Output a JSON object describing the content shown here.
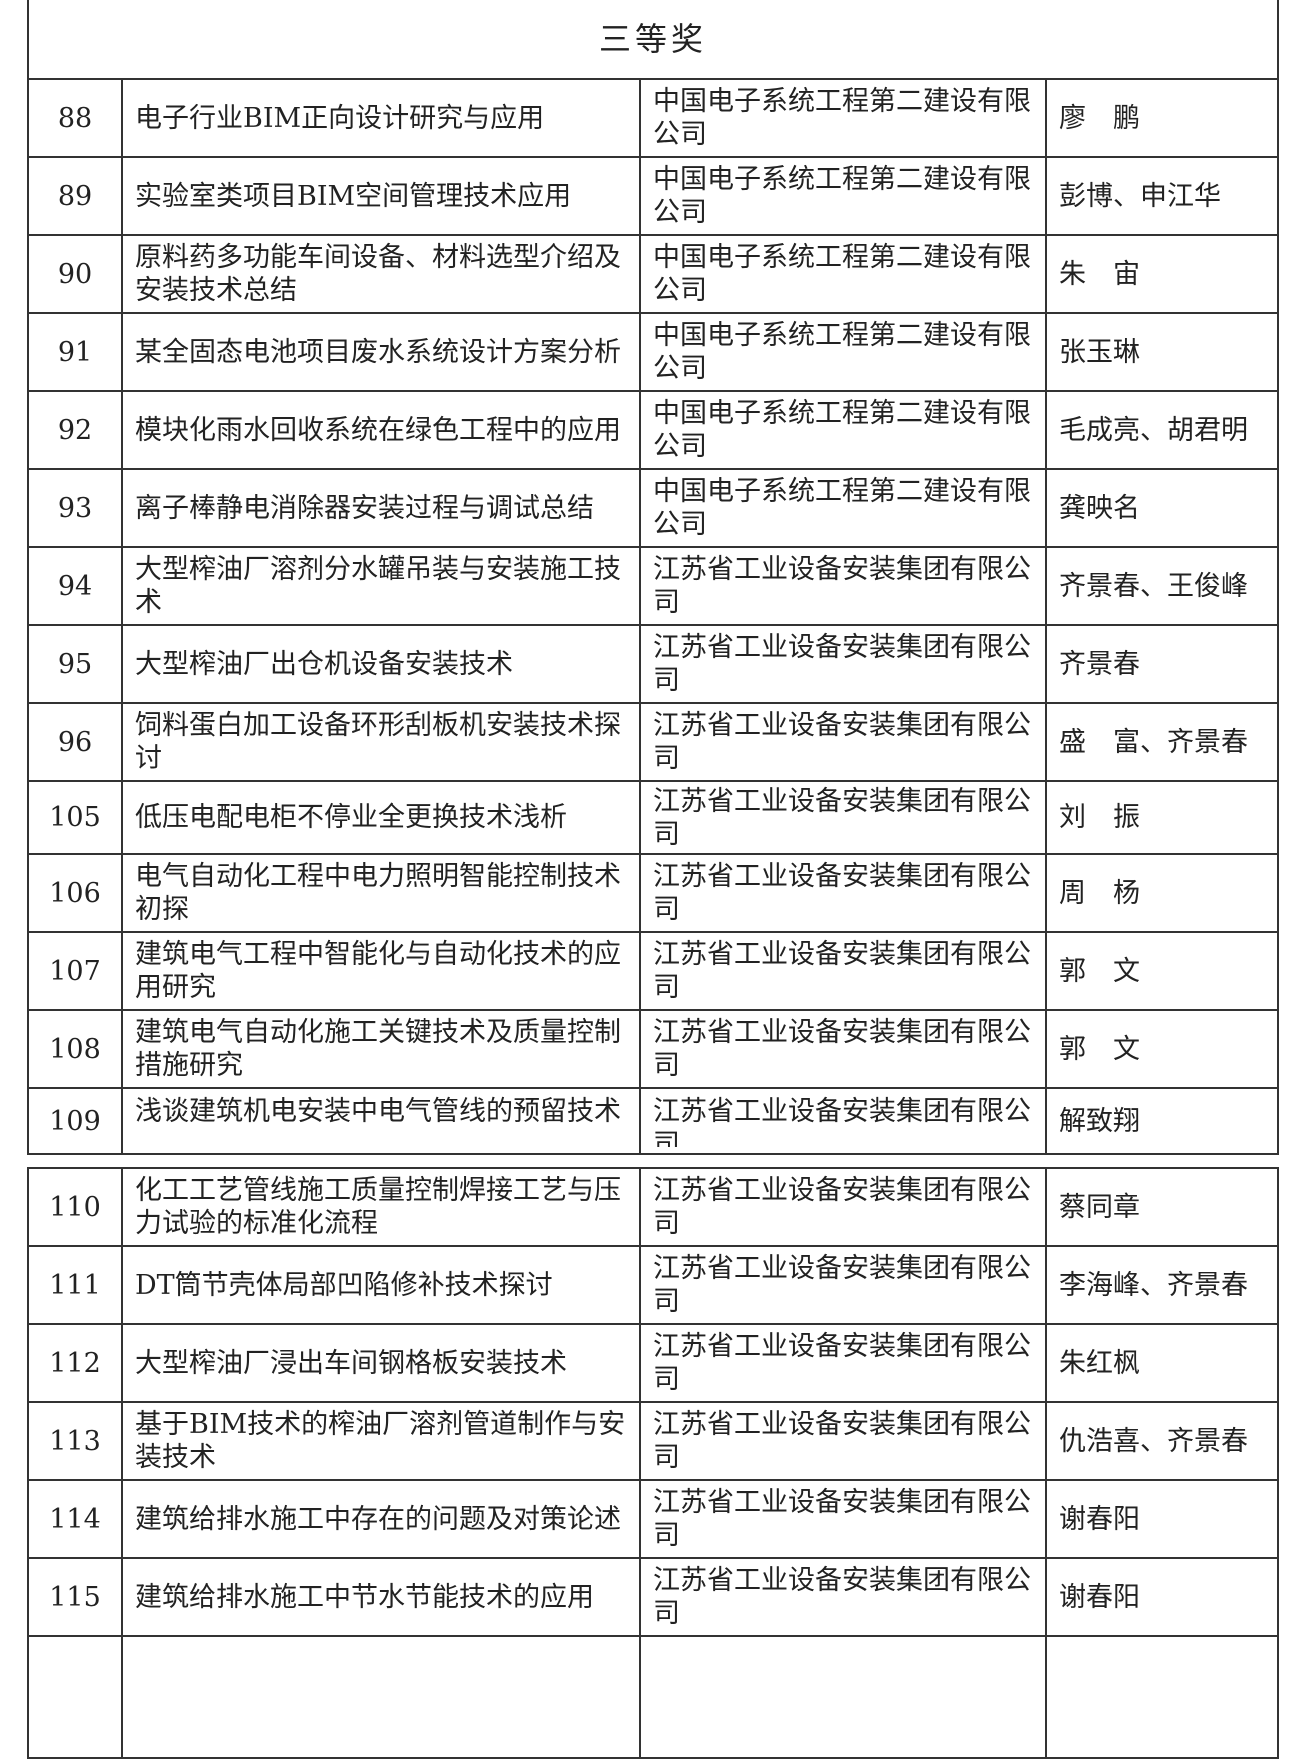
{
  "title": "三等奖",
  "rows": [
    {
      "no": "88",
      "title": "电子行业BIM正向设计研究与应用",
      "org": "中国电子系统工程第二建设有限公司",
      "author": "廖　鹏"
    },
    {
      "no": "89",
      "title": "实验室类项目BIM空间管理技术应用",
      "org": "中国电子系统工程第二建设有限公司",
      "author": "彭博、申江华"
    },
    {
      "no": "90",
      "title": "原料药多功能车间设备、材料选型介绍及安装技术总结",
      "org": "中国电子系统工程第二建设有限公司",
      "author": "朱　宙"
    },
    {
      "no": "91",
      "title": "某全固态电池项目废水系统设计方案分析",
      "org": "中国电子系统工程第二建设有限公司",
      "author": "张玉琳"
    },
    {
      "no": "92",
      "title": "模块化雨水回收系统在绿色工程中的应用",
      "org": "中国电子系统工程第二建设有限公司",
      "author": "毛成亮、胡君明"
    },
    {
      "no": "93",
      "title": "离子棒静电消除器安装过程与调试总结",
      "org": "中国电子系统工程第二建设有限公司",
      "author": "龚映名"
    },
    {
      "no": "94",
      "title": "大型榨油厂溶剂分水罐吊装与安装施工技术",
      "org": "江苏省工业设备安装集团有限公司",
      "author": "齐景春、王俊峰"
    },
    {
      "no": "95",
      "title": "大型榨油厂出仓机设备安装技术",
      "org": "江苏省工业设备安装集团有限公司",
      "author": "齐景春"
    },
    {
      "no": "96",
      "title": "饲料蛋白加工设备环形刮板机安装技术探讨",
      "org": "江苏省工业设备安装集团有限公司",
      "author": "盛　富、齐景春"
    },
    {
      "no": "105",
      "title": "低压电配电柜不停业全更换技术浅析",
      "org": "江苏省工业设备安装集团有限公司",
      "author": "刘　振"
    },
    {
      "no": "106",
      "title": "电气自动化工程中电力照明智能控制技术初探",
      "org": "江苏省工业设备安装集团有限公司",
      "author": "周　杨"
    },
    {
      "no": "107",
      "title": "建筑电气工程中智能化与自动化技术的应用研究",
      "org": "江苏省工业设备安装集团有限公司",
      "author": "郭　文"
    },
    {
      "no": "108",
      "title": "建筑电气自动化施工关键技术及质量控制措施研究",
      "org": "江苏省工业设备安装集团有限公司",
      "author": "郭　文"
    },
    {
      "no": "109",
      "title": "浅谈建筑机电安装中电气管线的预留技术",
      "org": "江苏省工业设备安装集团有限公司",
      "author": "解致翔"
    },
    {
      "no": "110",
      "title": "化工工艺管线施工质量控制焊接工艺与压力试验的标准化流程",
      "org": "江苏省工业设备安装集团有限公司",
      "author": "蔡同章"
    },
    {
      "no": "111",
      "title": "DT筒节壳体局部凹陷修补技术探讨",
      "org": "江苏省工业设备安装集团有限公司",
      "author": "李海峰、齐景春"
    },
    {
      "no": "112",
      "title": "大型榨油厂浸出车间钢格板安装技术",
      "org": "江苏省工业设备安装集团有限公司",
      "author": "朱红枫"
    },
    {
      "no": "113",
      "title": "基于BIM技术的榨油厂溶剂管道制作与安装技术",
      "org": "江苏省工业设备安装集团有限公司",
      "author": "仇浩喜、齐景春"
    },
    {
      "no": "114",
      "title": "建筑给排水施工中存在的问题及对策论述",
      "org": "江苏省工业设备安装集团有限公司",
      "author": "谢春阳"
    },
    {
      "no": "115",
      "title": "建筑给排水施工中节水节能技术的应用",
      "org": "江苏省工业设备安装集团有限公司",
      "author": "谢春阳"
    }
  ]
}
